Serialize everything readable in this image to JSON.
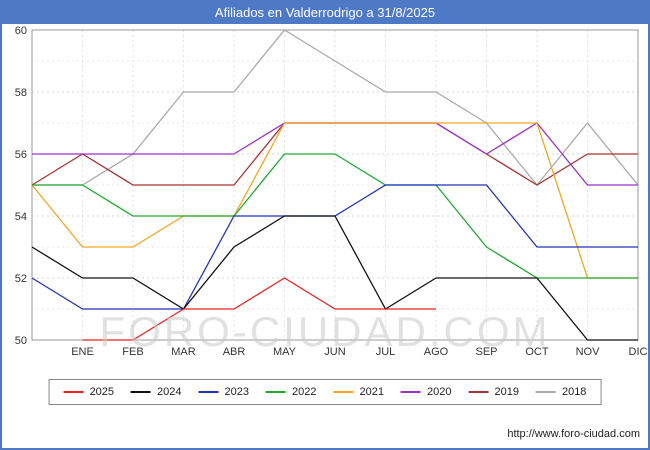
{
  "title": "Afiliados en Valderrodrigo a 31/8/2025",
  "watermark": "FORO-CIUDAD.COM",
  "footer_url": "http://www.foro-ciudad.com",
  "chart_data": {
    "type": "line",
    "title": "Afiliados en Valderrodrigo a 31/8/2025",
    "categories": [
      "ENE",
      "FEB",
      "MAR",
      "ABR",
      "MAY",
      "JUN",
      "JUL",
      "AGO",
      "SEP",
      "OCT",
      "NOV",
      "DIC"
    ],
    "note": "Each series has 13 points: a value at the left axis edge followed by 12 monthly values; null = no data",
    "ylim": [
      50,
      60
    ],
    "yticks": [
      50,
      52,
      54,
      56,
      58,
      60
    ],
    "grid": true,
    "legend_position": "bottom",
    "series": [
      {
        "name": "2025",
        "color": "#ee2222",
        "values": [
          null,
          50,
          50,
          51,
          51,
          52,
          51,
          51,
          51,
          null,
          null,
          null,
          null
        ]
      },
      {
        "name": "2024",
        "color": "#111111",
        "values": [
          53,
          52,
          52,
          51,
          53,
          54,
          54,
          51,
          52,
          52,
          52,
          50,
          50
        ]
      },
      {
        "name": "2023",
        "color": "#2233bb",
        "values": [
          52,
          51,
          51,
          51,
          54,
          54,
          54,
          55,
          55,
          55,
          53,
          53,
          53
        ]
      },
      {
        "name": "2022",
        "color": "#22aa33",
        "values": [
          55,
          55,
          54,
          54,
          54,
          56,
          56,
          55,
          55,
          53,
          52,
          52,
          52
        ]
      },
      {
        "name": "2021",
        "color": "#f5a623",
        "values": [
          55,
          53,
          53,
          54,
          54,
          57,
          57,
          57,
          57,
          57,
          57,
          52,
          52
        ]
      },
      {
        "name": "2020",
        "color": "#9933cc",
        "values": [
          56,
          56,
          56,
          56,
          56,
          57,
          57,
          57,
          57,
          56,
          57,
          55,
          55
        ]
      },
      {
        "name": "2019",
        "color": "#aa3333",
        "values": [
          55,
          56,
          55,
          55,
          55,
          57,
          57,
          57,
          57,
          56,
          55,
          56,
          56
        ]
      },
      {
        "name": "2018",
        "color": "#aaaaaa",
        "values": [
          55,
          55,
          56,
          58,
          58,
          60,
          59,
          58,
          58,
          57,
          55,
          57,
          55
        ]
      }
    ]
  }
}
